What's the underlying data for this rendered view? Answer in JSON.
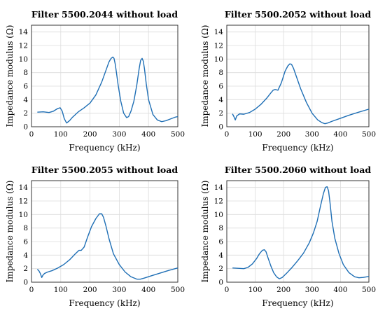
{
  "chart_data": [
    {
      "type": "line",
      "title": "Filter 5500.2044 without load",
      "xlabel": "Frequency (kHz)",
      "ylabel": "Impedance modulus (Ω)",
      "xlim": [
        0,
        500
      ],
      "ylim": [
        0,
        15
      ],
      "xticks": [
        "0",
        "100",
        "200",
        "300",
        "400",
        "500"
      ],
      "yticks": [
        "0",
        "2",
        "4",
        "6",
        "8",
        "10",
        "12",
        "14"
      ],
      "grid": true,
      "series": [
        {
          "color": "#1f6fb5",
          "x": [
            20,
            40,
            60,
            75,
            90,
            98,
            105,
            112,
            120,
            130,
            140,
            150,
            160,
            180,
            200,
            220,
            240,
            255,
            265,
            272,
            278,
            282,
            286,
            290,
            296,
            305,
            315,
            325,
            332,
            340,
            350,
            360,
            368,
            373,
            378,
            382,
            386,
            392,
            400,
            415,
            430,
            445,
            460,
            475,
            490,
            500
          ],
          "y": [
            2.15,
            2.2,
            2.1,
            2.3,
            2.7,
            2.8,
            2.3,
            1.2,
            0.55,
            0.9,
            1.4,
            1.8,
            2.2,
            2.8,
            3.5,
            4.7,
            6.6,
            8.4,
            9.6,
            10.1,
            10.3,
            10.1,
            9.3,
            8.1,
            6.2,
            3.8,
            2.0,
            1.35,
            1.5,
            2.3,
            3.8,
            6.2,
            8.6,
            9.8,
            10.1,
            9.7,
            8.6,
            6.4,
            4.0,
            1.8,
            1.0,
            0.75,
            0.9,
            1.15,
            1.4,
            1.5
          ]
        }
      ]
    },
    {
      "type": "line",
      "title": "Filter 5500.2052 without load",
      "xlabel": "Frequency (kHz)",
      "ylabel": "Impedance modulus (Ω)",
      "xlim": [
        0,
        500
      ],
      "ylim": [
        0,
        15
      ],
      "xticks": [
        "0",
        "100",
        "200",
        "300",
        "400",
        "500"
      ],
      "yticks": [
        "0",
        "2",
        "4",
        "6",
        "8",
        "10",
        "12",
        "14"
      ],
      "grid": true,
      "series": [
        {
          "color": "#1f6fb5",
          "x": [
            20,
            25,
            30,
            35,
            45,
            60,
            80,
            100,
            120,
            140,
            155,
            163,
            170,
            180,
            192,
            205,
            215,
            222,
            228,
            235,
            245,
            260,
            280,
            300,
            320,
            335,
            345,
            355,
            370,
            400,
            430,
            460,
            500
          ],
          "y": [
            1.9,
            1.5,
            1.0,
            1.6,
            1.9,
            1.85,
            2.1,
            2.6,
            3.3,
            4.2,
            5.0,
            5.4,
            5.5,
            5.4,
            6.5,
            8.2,
            9.0,
            9.3,
            9.2,
            8.6,
            7.4,
            5.6,
            3.6,
            2.0,
            1.0,
            0.6,
            0.45,
            0.55,
            0.8,
            1.25,
            1.7,
            2.1,
            2.6
          ]
        }
      ]
    },
    {
      "type": "line",
      "title": "Filter 5500.2055 without load",
      "xlabel": "Frequency (kHz)",
      "ylabel": "Impedance modulus (Ω)",
      "xlim": [
        0,
        500
      ],
      "ylim": [
        0,
        15
      ],
      "xticks": [
        "0",
        "100",
        "200",
        "300",
        "400",
        "500"
      ],
      "yticks": [
        "0",
        "2",
        "4",
        "6",
        "8",
        "10",
        "12",
        "14"
      ],
      "grid": true,
      "series": [
        {
          "color": "#1f6fb5",
          "x": [
            20,
            25,
            30,
            35,
            40,
            45,
            55,
            70,
            90,
            110,
            130,
            150,
            162,
            170,
            180,
            192,
            205,
            220,
            232,
            240,
            246,
            255,
            265,
            280,
            300,
            320,
            340,
            360,
            372,
            385,
            410,
            440,
            470,
            500
          ],
          "y": [
            1.9,
            1.7,
            1.3,
            0.7,
            1.1,
            1.3,
            1.5,
            1.7,
            2.1,
            2.6,
            3.3,
            4.2,
            4.7,
            4.7,
            5.2,
            6.7,
            8.2,
            9.4,
            10.1,
            10.1,
            9.6,
            8.2,
            6.4,
            4.2,
            2.6,
            1.5,
            0.8,
            0.45,
            0.45,
            0.6,
            0.95,
            1.35,
            1.75,
            2.1
          ]
        }
      ]
    },
    {
      "type": "line",
      "title": "Filter 5500.2060 without load",
      "xlabel": "Frequency (kHz)",
      "ylabel": "Impedance modulus (Ω)",
      "xlim": [
        0,
        500
      ],
      "ylim": [
        0,
        15
      ],
      "xticks": [
        "0",
        "100",
        "200",
        "300",
        "400",
        "500"
      ],
      "yticks": [
        "0",
        "2",
        "4",
        "6",
        "8",
        "10",
        "12",
        "14"
      ],
      "grid": true,
      "series": [
        {
          "color": "#1f6fb5",
          "x": [
            20,
            40,
            60,
            75,
            90,
            105,
            115,
            125,
            132,
            138,
            145,
            155,
            165,
            175,
            185,
            195,
            210,
            230,
            250,
            270,
            290,
            305,
            318,
            330,
            340,
            347,
            353,
            358,
            363,
            370,
            380,
            395,
            410,
            430,
            450,
            465,
            480,
            500
          ],
          "y": [
            2.1,
            2.05,
            2.0,
            2.2,
            2.7,
            3.5,
            4.2,
            4.7,
            4.8,
            4.5,
            3.6,
            2.4,
            1.4,
            0.8,
            0.5,
            0.7,
            1.3,
            2.2,
            3.2,
            4.3,
            5.8,
            7.3,
            9.0,
            11.3,
            13.1,
            14.0,
            14.1,
            13.5,
            11.8,
            9.0,
            6.5,
            4.2,
            2.6,
            1.4,
            0.8,
            0.65,
            0.7,
            0.85
          ]
        }
      ]
    }
  ]
}
